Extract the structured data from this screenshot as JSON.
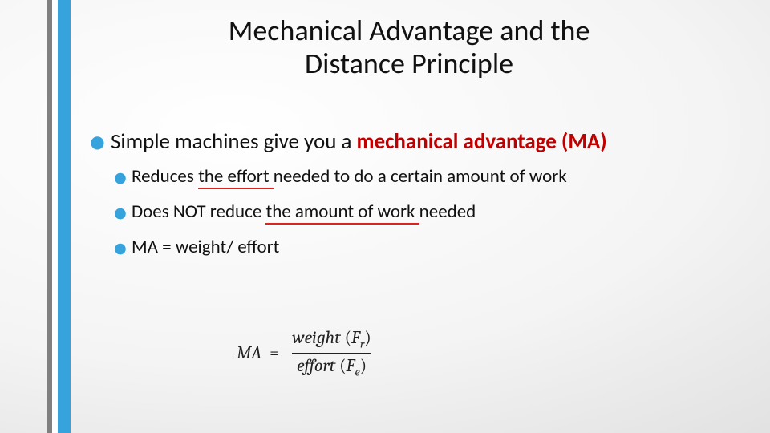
{
  "accent": {
    "grey": "#808080",
    "white": "#ffffff",
    "blue": "#37a3dc",
    "red": "#c00000"
  },
  "title_line1": "Mechanical Advantage and the",
  "title_line2": "Distance Principle",
  "bullet1_pre": "Simple machines give you a ",
  "bullet1_highlight": "mechanical advantage (MA)",
  "sub1_a": "Reduces ",
  "sub1_u": "the effort ",
  "sub1_b": "needed to do a certain amount of work",
  "sub2_a": "Does NOT reduce ",
  "sub2_u": "the amount of work ",
  "sub2_b": "needed",
  "sub3": "MA = weight/ effort",
  "eq_lhs": "MA",
  "eq_num_word": "weight",
  "eq_num_sym": "F",
  "eq_num_sub": "r",
  "eq_den_word": "effort",
  "eq_den_sym": "F",
  "eq_den_sub": "e"
}
